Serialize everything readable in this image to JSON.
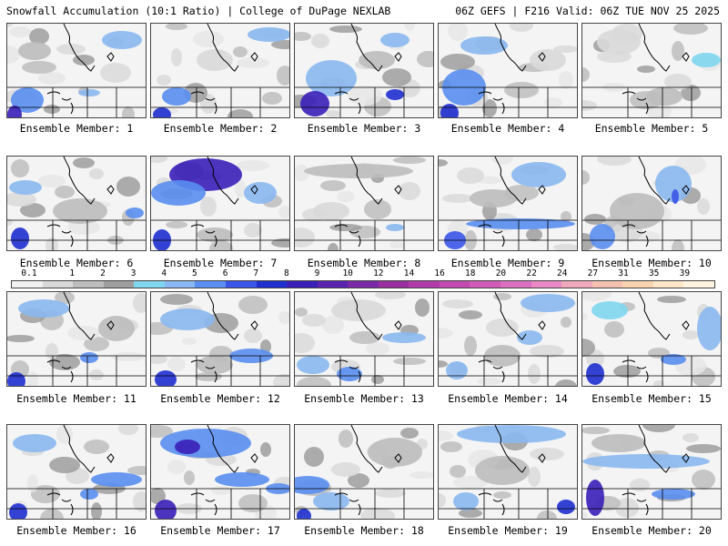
{
  "header": {
    "left_title": "Snowfall Accumulation (10:1 Ratio) | College of DuPage NEXLAB",
    "right_title": "06Z GEFS | F216 Valid: 06Z TUE NOV 25 2025"
  },
  "colorbar": {
    "ticks": [
      "0.1",
      "1",
      "2",
      "3",
      "4",
      "5",
      "6",
      "7",
      "8",
      "9",
      "10",
      "12",
      "14",
      "16",
      "18",
      "20",
      "22",
      "24",
      "27",
      "31",
      "35",
      "39"
    ],
    "colors": [
      "#f2f2f2",
      "#d9d9d9",
      "#bdbdbd",
      "#9e9e9e",
      "#7fd6ee",
      "#8ab8f0",
      "#5a8ef0",
      "#3a55e8",
      "#1f2fd0",
      "#3a1fb8",
      "#5a23b0",
      "#7a2aa8",
      "#9a2fa0",
      "#b03aa8",
      "#c24ab0",
      "#d05cb8",
      "#dc70c0",
      "#e888c4",
      "#f0a8bc",
      "#f6c0b0",
      "#f9d4b0",
      "#fbe6c8",
      "#fdf3e0"
    ]
  },
  "panels": [
    {
      "label": "Ensemble Member: 1"
    },
    {
      "label": "Ensemble Member: 2"
    },
    {
      "label": "Ensemble Member: 3"
    },
    {
      "label": "Ensemble Member: 4"
    },
    {
      "label": "Ensemble Member: 5"
    },
    {
      "label": "Ensemble Member: 6"
    },
    {
      "label": "Ensemble Member: 7"
    },
    {
      "label": "Ensemble Member: 8"
    },
    {
      "label": "Ensemble Member: 9"
    },
    {
      "label": "Ensemble Member: 10"
    },
    {
      "label": "Ensemble Member: 11"
    },
    {
      "label": "Ensemble Member: 12"
    },
    {
      "label": "Ensemble Member: 13"
    },
    {
      "label": "Ensemble Member: 14"
    },
    {
      "label": "Ensemble Member: 15"
    },
    {
      "label": "Ensemble Member: 16"
    },
    {
      "label": "Ensemble Member: 17"
    },
    {
      "label": "Ensemble Member: 18"
    },
    {
      "label": "Ensemble Member: 19"
    },
    {
      "label": "Ensemble Member: 20"
    }
  ]
}
